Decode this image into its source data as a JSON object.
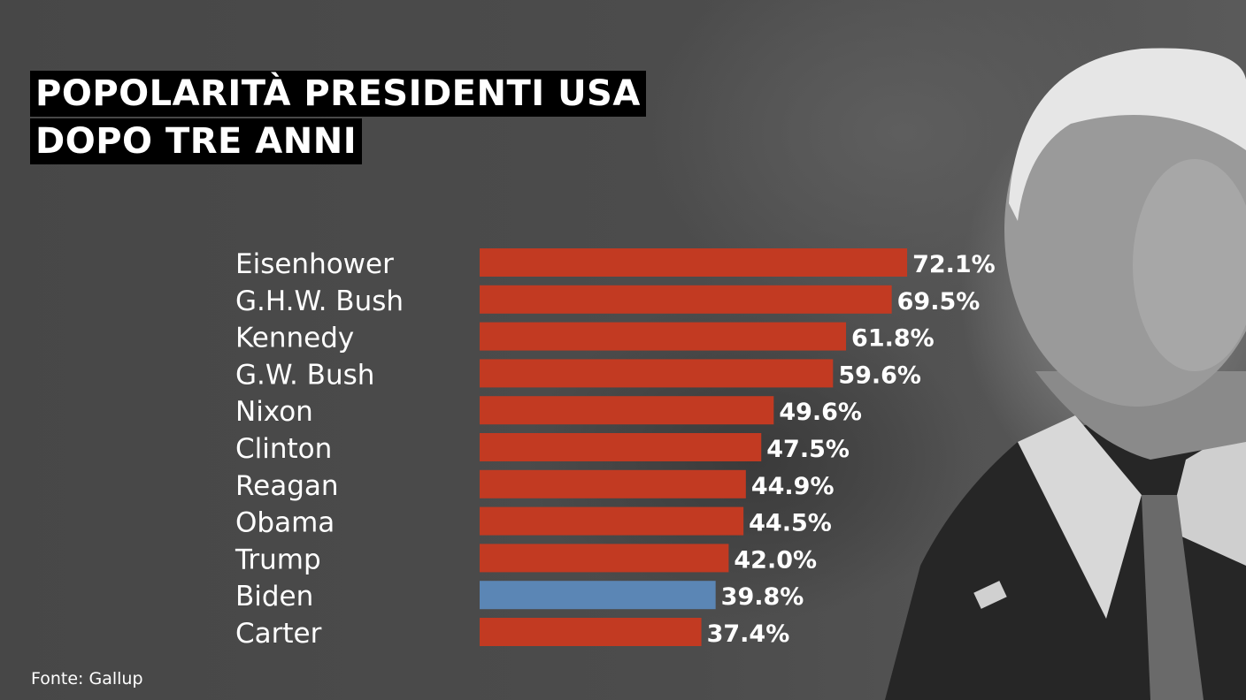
{
  "title_lines": [
    "POPOLARITÀ PRESIDENTI USA",
    "DOPO TRE ANNI"
  ],
  "source": "Fonte: Gallup",
  "colors": {
    "bar_default": "#c23a22",
    "bar_highlight": "#5b86b5",
    "text": "#ffffff",
    "title_bg": "#000000"
  },
  "chart_data": {
    "type": "bar",
    "orientation": "horizontal",
    "categories": [
      "Eisenhower",
      "G.H.W. Bush",
      "Kennedy",
      "G.W. Bush",
      "Nixon",
      "Clinton",
      "Reagan",
      "Obama",
      "Trump",
      "Biden",
      "Carter"
    ],
    "values": [
      72.1,
      69.5,
      61.8,
      59.6,
      49.6,
      47.5,
      44.9,
      44.5,
      42.0,
      39.8,
      37.4
    ],
    "value_labels": [
      "72.1%",
      "69.5%",
      "61.8%",
      "59.6%",
      "49.6%",
      "47.5%",
      "44.9%",
      "44.5%",
      "42.0%",
      "39.8%",
      "37.4%"
    ],
    "highlight": "Biden",
    "xlim": [
      0,
      100
    ],
    "grid": false,
    "legend": "none"
  }
}
